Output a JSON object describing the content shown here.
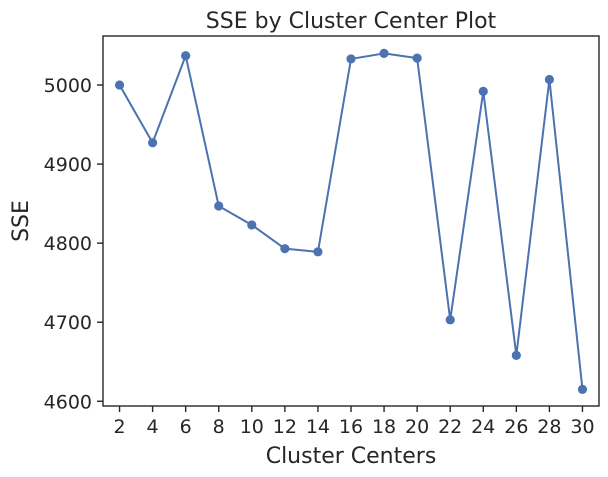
{
  "chart_data": {
    "type": "line",
    "title": "SSE by Cluster Center Plot",
    "xlabel": "Cluster Centers",
    "ylabel": "SSE",
    "x": [
      2,
      4,
      6,
      8,
      10,
      12,
      14,
      16,
      18,
      20,
      22,
      24,
      26,
      28,
      30
    ],
    "series": [
      {
        "values": [
          5000,
          4927,
          5037,
          4847,
          4823,
          4793,
          4789,
          5033,
          5040,
          5034,
          4703,
          4992,
          4658,
          5007,
          4615
        ],
        "color": "#4c72b0",
        "marker": "circle"
      }
    ],
    "xticks": [
      2,
      4,
      6,
      8,
      10,
      12,
      14,
      16,
      18,
      20,
      22,
      24,
      26,
      28,
      30
    ],
    "yticks": [
      4600,
      4700,
      4800,
      4900,
      5000
    ],
    "xlim": [
      1.0,
      31.0
    ],
    "ylim": [
      4594,
      5062
    ],
    "grid": false,
    "legend": "none"
  }
}
